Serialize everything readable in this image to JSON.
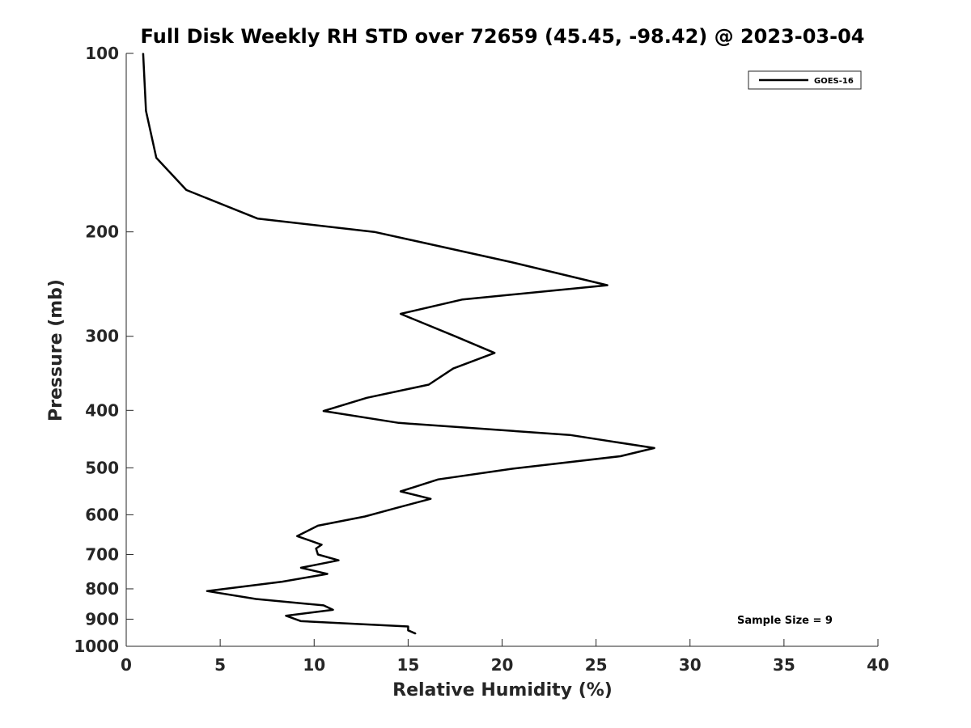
{
  "chart_data": {
    "type": "line",
    "title": "Full Disk Weekly RH STD over 72659 (45.45, -98.42) @ 2023-03-04",
    "xlabel": "Relative Humidity (%)",
    "ylabel": "Pressure (mb)",
    "xlim": [
      0,
      40
    ],
    "ylim": [
      100,
      1000
    ],
    "yscale": "log",
    "yreversed": true,
    "xticks": [
      0,
      5,
      10,
      15,
      20,
      25,
      30,
      35,
      40
    ],
    "yticks": [
      100,
      200,
      300,
      400,
      500,
      600,
      700,
      800,
      900,
      1000
    ],
    "grid": false,
    "legend": {
      "position": "top-right",
      "entries": [
        "GOES-16"
      ]
    },
    "annotation": "Sample Size = 9",
    "series": [
      {
        "name": "GOES-16",
        "color": "#000000",
        "points": [
          [
            0.9,
            100
          ],
          [
            1.05,
            125
          ],
          [
            1.6,
            150
          ],
          [
            3.2,
            170
          ],
          [
            7.0,
            190
          ],
          [
            13.2,
            200
          ],
          [
            20.5,
            225
          ],
          [
            25.6,
            246
          ],
          [
            17.9,
            260
          ],
          [
            14.6,
            275
          ],
          [
            17.5,
            300
          ],
          [
            19.6,
            320
          ],
          [
            17.4,
            340
          ],
          [
            16.1,
            362
          ],
          [
            12.8,
            381
          ],
          [
            10.5,
            401
          ],
          [
            14.5,
            420
          ],
          [
            23.6,
            440
          ],
          [
            28.1,
            463
          ],
          [
            26.3,
            478
          ],
          [
            20.5,
            502
          ],
          [
            16.6,
            523
          ],
          [
            14.6,
            548
          ],
          [
            16.2,
            564
          ],
          [
            14.4,
            584
          ],
          [
            12.7,
            604
          ],
          [
            10.2,
            626
          ],
          [
            9.1,
            652
          ],
          [
            10.4,
            674
          ],
          [
            10.1,
            684
          ],
          [
            10.2,
            700
          ],
          [
            11.3,
            716
          ],
          [
            9.3,
            737
          ],
          [
            10.7,
            755
          ],
          [
            8.3,
            778
          ],
          [
            4.3,
            807
          ],
          [
            6.9,
            832
          ],
          [
            10.5,
            853
          ],
          [
            11.0,
            868
          ],
          [
            8.5,
            888
          ],
          [
            9.3,
            907
          ],
          [
            15.0,
            926
          ],
          [
            15.0,
            940
          ],
          [
            15.4,
            952
          ]
        ]
      }
    ]
  }
}
